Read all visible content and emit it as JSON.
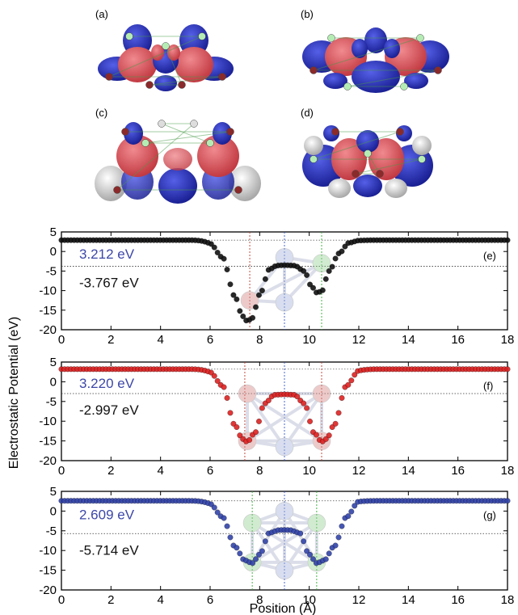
{
  "top_panels": [
    {
      "label": "(a)",
      "variant": "a"
    },
    {
      "label": "(b)",
      "variant": "b"
    },
    {
      "label": "(c)",
      "variant": "c"
    },
    {
      "label": "(d)",
      "variant": "d"
    }
  ],
  "colors": {
    "isosurface_blue": "#2c35c8",
    "isosurface_red": "#e0575e",
    "isosurface_gray": "#d9d9d9",
    "atom_light_green": "#b4ecb4",
    "atom_dark_red": "#8b2a2a"
  },
  "chart_data": {
    "type": "scatter",
    "shared_xlabel": "Position (Å)",
    "shared_ylabel": "Electrostatic Potential (eV)",
    "xlim": [
      0,
      18
    ],
    "ylim": [
      -20,
      5
    ],
    "xticks": [
      0,
      2,
      4,
      6,
      8,
      10,
      12,
      14,
      16,
      18
    ],
    "yticks": [
      5,
      0,
      -5,
      -10,
      -15,
      -20
    ],
    "panels": [
      {
        "label": "(e)",
        "color": "#111111",
        "plateau": 2.9,
        "vacuum_label": "3.212 eV",
        "avg_level": -3.767,
        "avg_label": "-3.767 eV",
        "vlines": [
          {
            "x": 7.6,
            "color": "#c0392b"
          },
          {
            "x": 9.0,
            "color": "#3355cc"
          },
          {
            "x": 10.5,
            "color": "#33aa33"
          }
        ],
        "x": [
          6.0,
          6.5,
          7.0,
          7.3,
          7.5,
          7.7,
          8.0,
          8.4,
          8.7,
          9.0,
          9.4,
          9.8,
          10.1,
          10.3,
          10.5,
          10.8,
          11.2,
          11.6,
          12.0
        ],
        "y": [
          2.0,
          -1.5,
          -11.5,
          -16.5,
          -17.8,
          -17.0,
          -11.0,
          -4.5,
          -3.6,
          -3.5,
          -3.6,
          -5.0,
          -9.0,
          -10.5,
          -10.2,
          -5.0,
          -0.5,
          2.2,
          2.8
        ],
        "structure_atoms": [
          {
            "x": 7.6,
            "y": -12.5,
            "color": "#d98c8c"
          },
          {
            "x": 10.5,
            "y": -3.0,
            "color": "#9ad49a"
          },
          {
            "x": 9.0,
            "y": -1.5,
            "color": "#aab8dd"
          },
          {
            "x": 9.0,
            "y": -13.0,
            "color": "#aab8dd"
          }
        ]
      },
      {
        "label": "(f)",
        "color": "#dd2222",
        "plateau": 3.2,
        "vacuum_label": "3.220 eV",
        "avg_level": -2.997,
        "avg_label": "-2.997 eV",
        "vlines": [
          {
            "x": 7.4,
            "color": "#c0392b"
          },
          {
            "x": 9.0,
            "color": "#3355cc"
          },
          {
            "x": 10.5,
            "color": "#c0392b"
          }
        ],
        "x": [
          6.0,
          6.5,
          7.0,
          7.3,
          7.5,
          7.8,
          8.2,
          8.6,
          9.0,
          9.4,
          9.8,
          10.2,
          10.5,
          10.7,
          11.0,
          11.5,
          12.0
        ],
        "y": [
          2.4,
          -1.0,
          -11.0,
          -14.5,
          -15.2,
          -13.0,
          -5.5,
          -3.3,
          -3.2,
          -3.3,
          -5.5,
          -13.0,
          -15.2,
          -14.5,
          -11.0,
          -1.0,
          2.8
        ],
        "structure_atoms": [
          {
            "x": 7.5,
            "y": -3.0,
            "color": "#d98c8c"
          },
          {
            "x": 10.5,
            "y": -3.0,
            "color": "#d98c8c"
          },
          {
            "x": 7.5,
            "y": -15.0,
            "color": "#d98c8c"
          },
          {
            "x": 10.5,
            "y": -15.0,
            "color": "#d98c8c"
          },
          {
            "x": 9.0,
            "y": -16.5,
            "color": "#aab8dd"
          }
        ]
      },
      {
        "label": "(g)",
        "color": "#3344aa",
        "plateau": 2.6,
        "vacuum_label": "2.609 eV",
        "avg_level": -5.714,
        "avg_label": "-5.714 eV",
        "vlines": [
          {
            "x": 7.7,
            "color": "#33aa33"
          },
          {
            "x": 9.0,
            "color": "#3355cc"
          },
          {
            "x": 10.3,
            "color": "#33aa33"
          }
        ],
        "x": [
          6.0,
          6.5,
          7.0,
          7.4,
          7.7,
          8.0,
          8.4,
          8.8,
          9.0,
          9.2,
          9.6,
          10.0,
          10.3,
          10.6,
          11.0,
          11.5,
          12.0
        ],
        "y": [
          1.8,
          -1.5,
          -9.0,
          -12.5,
          -13.2,
          -11.0,
          -5.5,
          -4.8,
          -4.8,
          -4.8,
          -5.5,
          -11.0,
          -13.2,
          -12.5,
          -9.0,
          -1.5,
          2.4
        ],
        "structure_atoms": [
          {
            "x": 7.7,
            "y": -3.0,
            "color": "#9ad49a"
          },
          {
            "x": 10.3,
            "y": -3.0,
            "color": "#9ad49a"
          },
          {
            "x": 7.7,
            "y": -13.0,
            "color": "#9ad49a"
          },
          {
            "x": 10.3,
            "y": -13.0,
            "color": "#9ad49a"
          },
          {
            "x": 9.0,
            "y": 0.0,
            "color": "#aab8dd"
          },
          {
            "x": 9.0,
            "y": -15.0,
            "color": "#aab8dd"
          }
        ]
      }
    ]
  }
}
